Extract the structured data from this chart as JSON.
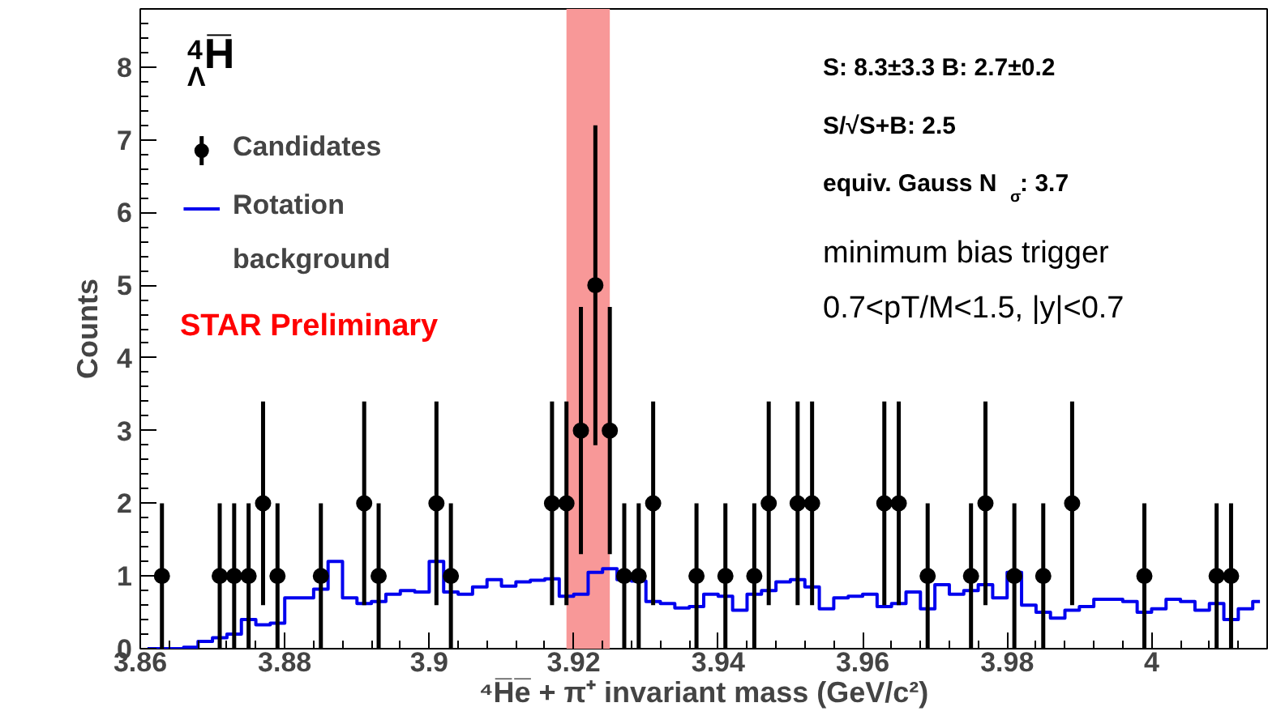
{
  "chart_data": {
    "type": "scatter",
    "title": "$^{4}$$_{Λ}$H̅",
    "xlabel": "⁴H̅e̅ + π⁺ invariant mass (GeV/c²)",
    "ylabel": "Counts",
    "xlim": [
      3.86,
      4.016
    ],
    "xticks": [
      3.86,
      3.88,
      3.9,
      3.92,
      3.94,
      3.96,
      3.98,
      4
    ],
    "ylim": [
      0,
      8.8
    ],
    "yticks": [
      0,
      1,
      2,
      3,
      4,
      5,
      6,
      7,
      8
    ],
    "grid": false,
    "legend": "top left",
    "series": [
      {
        "name": "Candidates",
        "marker": "circle",
        "color": "#000000",
        "x": [
          3.863,
          3.871,
          3.873,
          3.875,
          3.877,
          3.879,
          3.885,
          3.891,
          3.893,
          3.901,
          3.903,
          3.917,
          3.919,
          3.921,
          3.923,
          3.925,
          3.927,
          3.929,
          3.931,
          3.937,
          3.941,
          3.945,
          3.947,
          3.951,
          3.953,
          3.963,
          3.965,
          3.969,
          3.975,
          3.977,
          3.981,
          3.985,
          3.989,
          3.999,
          4.009,
          4.011
        ],
        "values": [
          1,
          1,
          1,
          1,
          2,
          1,
          1,
          2,
          1,
          2,
          1,
          2,
          2,
          3,
          5,
          3,
          1,
          1,
          2,
          1,
          1,
          1,
          2,
          2,
          2,
          2,
          2,
          1,
          1,
          2,
          1,
          1,
          2,
          1,
          1,
          1
        ],
        "errors": [
          1,
          1,
          1,
          1,
          1.4,
          1,
          1,
          1.4,
          1,
          1.4,
          1,
          1.4,
          1.4,
          1.7,
          2.2,
          1.7,
          1,
          1,
          1.4,
          1,
          1,
          1,
          1.4,
          1.4,
          1.4,
          1.4,
          1.4,
          1,
          1,
          1.4,
          1,
          1,
          1.4,
          1,
          1,
          1
        ]
      },
      {
        "name": "Rotation background",
        "type": "step",
        "color": "#0000ee",
        "x": [
          3.861,
          3.863,
          3.865,
          3.867,
          3.869,
          3.871,
          3.873,
          3.875,
          3.877,
          3.879,
          3.881,
          3.883,
          3.885,
          3.887,
          3.889,
          3.891,
          3.893,
          3.895,
          3.897,
          3.899,
          3.901,
          3.903,
          3.905,
          3.907,
          3.909,
          3.911,
          3.913,
          3.915,
          3.917,
          3.919,
          3.921,
          3.923,
          3.925,
          3.927,
          3.929,
          3.931,
          3.933,
          3.935,
          3.937,
          3.939,
          3.941,
          3.943,
          3.945,
          3.947,
          3.949,
          3.951,
          3.953,
          3.955,
          3.957,
          3.959,
          3.961,
          3.963,
          3.965,
          3.967,
          3.969,
          3.971,
          3.973,
          3.975,
          3.977,
          3.979,
          3.981,
          3.983,
          3.985,
          3.987,
          3.989,
          3.991,
          3.993,
          3.995,
          3.997,
          3.999,
          4.001,
          4.003,
          4.005,
          4.007,
          4.009,
          4.011,
          4.013,
          4.015
        ],
        "values": [
          0,
          0,
          0,
          0.02,
          0.1,
          0.15,
          0.2,
          0.4,
          0.33,
          0.35,
          0.7,
          0.7,
          0.82,
          1.2,
          0.7,
          0.62,
          0.65,
          0.75,
          0.8,
          0.78,
          1.2,
          0.78,
          0.75,
          0.85,
          0.95,
          0.86,
          0.92,
          0.94,
          0.96,
          0.72,
          0.75,
          1.05,
          1.1,
          0.95,
          0.93,
          0.65,
          0.62,
          0.56,
          0.58,
          0.75,
          0.72,
          0.53,
          0.75,
          0.8,
          0.92,
          0.95,
          0.85,
          0.55,
          0.7,
          0.72,
          0.75,
          0.58,
          0.62,
          0.78,
          0.55,
          0.88,
          0.75,
          0.8,
          0.88,
          0.7,
          1.05,
          0.6,
          0.5,
          0.42,
          0.53,
          0.58,
          0.68,
          0.68,
          0.65,
          0.5,
          0.55,
          0.68,
          0.65,
          0.53,
          0.62,
          0.4,
          0.55,
          0.65
        ]
      }
    ],
    "bands": [
      {
        "axis": "x",
        "from": 3.919,
        "to": 3.925,
        "color": "#f89898"
      }
    ],
    "annotations": [
      "STAR Preliminary",
      "S: 8.3±3.3   B: 2.7±0.2",
      "S/√S+B: 2.5",
      "equiv. Gauss N$_{σ}$: 3.7",
      "minimum bias trigger",
      "0.7<pT/M<1.5, |y|<0.7"
    ]
  }
}
